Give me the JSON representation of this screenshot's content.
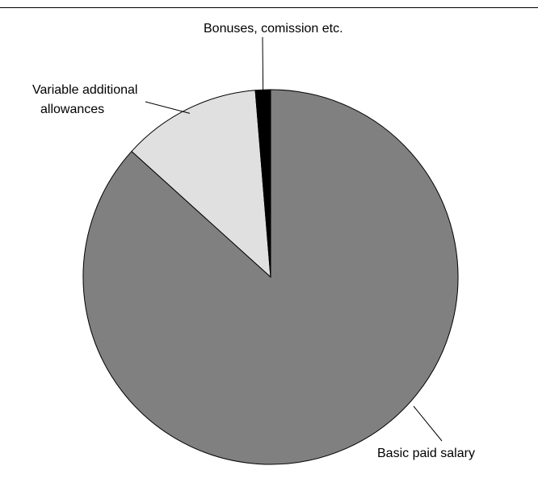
{
  "chart_data": {
    "type": "pie",
    "start": "top",
    "direction": "clockwise",
    "slices": [
      {
        "label": "Basic paid salary",
        "value": 86.7,
        "color": "#808080",
        "key": "basic"
      },
      {
        "label": "Variable additional allowances",
        "label_lines": [
          "Variable additional",
          "allowances"
        ],
        "value": 12.0,
        "color": "#e0e0e0",
        "key": "variable"
      },
      {
        "label": "Bonuses, comission etc.",
        "value": 1.3,
        "color": "#000000",
        "key": "bonuses"
      }
    ]
  }
}
